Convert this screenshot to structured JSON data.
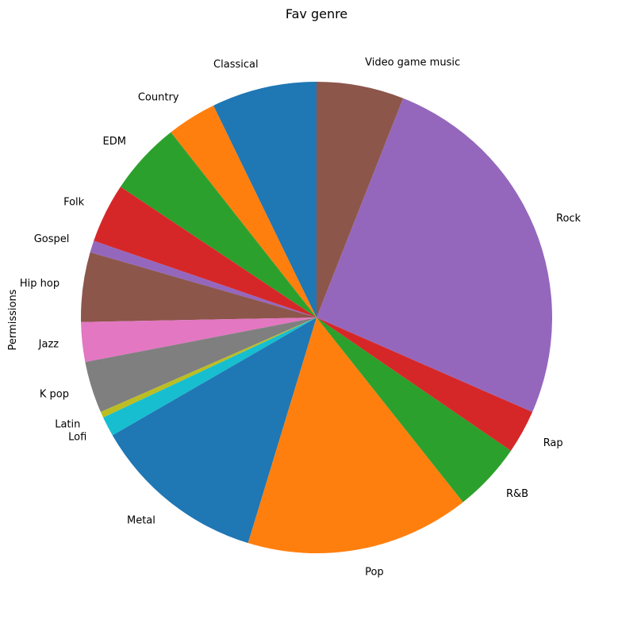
{
  "chart_data": {
    "type": "pie",
    "title": "Fav genre",
    "ylabel": "Permissions",
    "start_angle_deg": 90,
    "direction": "counterclockwise",
    "slices": [
      {
        "label": "Classical",
        "value": 53,
        "color": "#1f77b4"
      },
      {
        "label": "Country",
        "value": 25,
        "color": "#ff7f0e"
      },
      {
        "label": "EDM",
        "value": 37,
        "color": "#2ca02c"
      },
      {
        "label": "Folk",
        "value": 30,
        "color": "#d62728"
      },
      {
        "label": "Gospel",
        "value": 6,
        "color": "#9467bd"
      },
      {
        "label": "Hip hop",
        "value": 35,
        "color": "#8c564b"
      },
      {
        "label": "Jazz",
        "value": 20,
        "color": "#e377c2"
      },
      {
        "label": "K pop",
        "value": 26,
        "color": "#7f7f7f"
      },
      {
        "label": "Latin",
        "value": 3,
        "color": "#bcbd22"
      },
      {
        "label": "Lofi",
        "value": 10,
        "color": "#17becf"
      },
      {
        "label": "Metal",
        "value": 88,
        "color": "#1f77b4"
      },
      {
        "label": "Pop",
        "value": 113,
        "color": "#ff7f0e"
      },
      {
        "label": "R&B",
        "value": 35,
        "color": "#2ca02c"
      },
      {
        "label": "Rap",
        "value": 22,
        "color": "#d62728"
      },
      {
        "label": "Rock",
        "value": 188,
        "color": "#9467bd"
      },
      {
        "label": "Video game music",
        "value": 44,
        "color": "#8c564b"
      }
    ]
  }
}
